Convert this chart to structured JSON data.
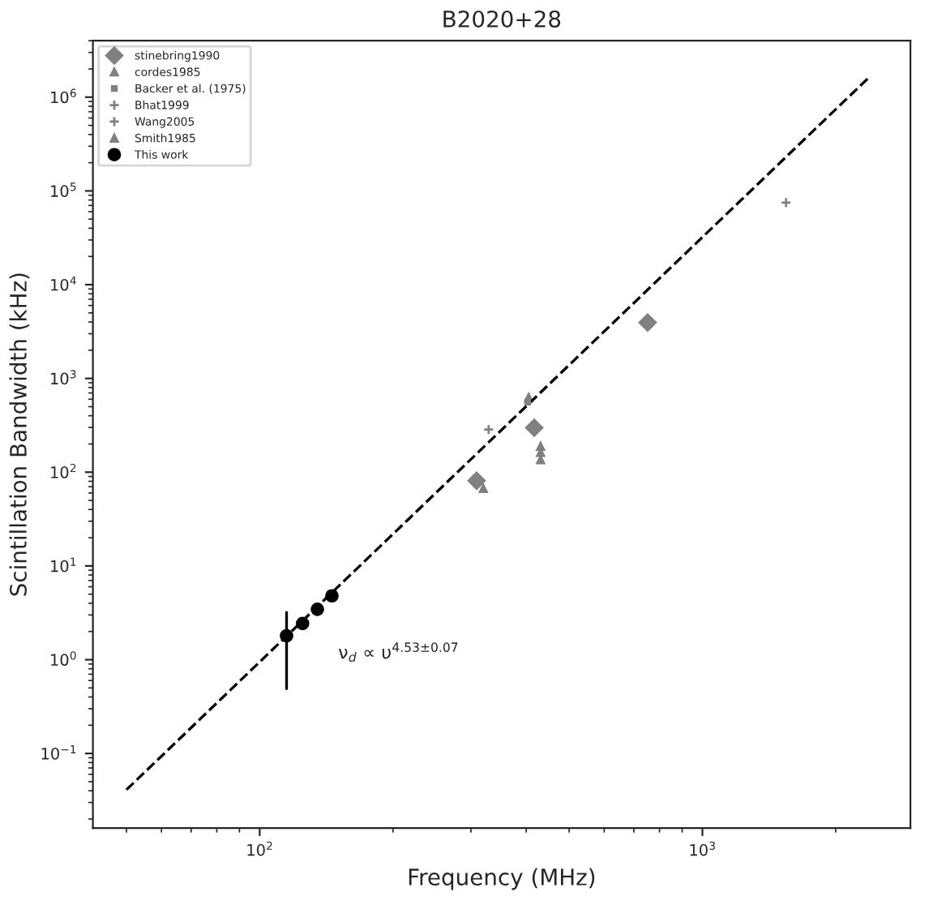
{
  "chart_data": {
    "type": "scatter",
    "title": "B2020+28",
    "xlabel": "Frequency (MHz)",
    "ylabel": "Scintillation Bandwidth (kHz)",
    "log": "xy",
    "grid": false,
    "legend": "top left",
    "xlim": [
      42,
      2950
    ],
    "ylim": [
      0.016,
      4000000
    ],
    "xticks": [
      {
        "value": 100,
        "label": "10$^{2}$"
      },
      {
        "value": 1000,
        "label": "10$^{3}$"
      }
    ],
    "yticks": [
      {
        "value": 0.1,
        "label": "10$^{−1}$"
      },
      {
        "value": 1,
        "label": "10$^{0}$"
      },
      {
        "value": 10,
        "label": "10$^{1}$"
      },
      {
        "value": 100,
        "label": "10$^{2}$"
      },
      {
        "value": 1000,
        "label": "10$^{3}$"
      },
      {
        "value": 10000,
        "label": "10$^{4}$"
      },
      {
        "value": 100000,
        "label": "10$^{5}$"
      },
      {
        "value": 1000000,
        "label": "10$^{6}$"
      }
    ],
    "series": [
      {
        "name": "stinebring1990",
        "color": "#808080",
        "marker": "diamond",
        "x": [
          309,
          417,
          752
        ],
        "values": [
          81,
          298,
          3950
        ]
      },
      {
        "name": "cordes1985",
        "color": "#808080",
        "marker": "triangle",
        "x": [
          320,
          431,
          431,
          431
        ],
        "values": [
          67,
          189,
          162,
          136
        ]
      },
      {
        "name": "Backer et al. (1975)",
        "color": "#808080",
        "marker": "square",
        "x": [
          403
        ],
        "values": [
          560
        ]
      },
      {
        "name": "Bhat1999",
        "color": "#808080",
        "marker": "cross",
        "x": [
          329
        ],
        "values": [
          285
        ]
      },
      {
        "name": "Wang2005",
        "color": "#808080",
        "marker": "cross",
        "x": [
          1545
        ],
        "values": [
          75000
        ]
      },
      {
        "name": "Smith1985",
        "color": "#808080",
        "marker": "triangle",
        "x": [
          405
        ],
        "values": [
          627
        ]
      },
      {
        "name": "This work",
        "color": "#000000",
        "marker": "circle",
        "x": [
          115,
          125,
          135,
          145.6
        ],
        "values": [
          1.8,
          2.43,
          3.45,
          4.8
        ],
        "errors": [
          [
            0.49,
            3.2
          ],
          null,
          null,
          null
        ]
      },
      {
        "type": "line",
        "color": "#000000",
        "line_style": "dashed",
        "marker": "none",
        "x": [
          50,
          2370
        ],
        "values": [
          0.041,
          1600000
        ]
      }
    ],
    "annotations": [
      "ν$_{d}$ ∝ υ$^{4.53±0.07}$"
    ]
  }
}
